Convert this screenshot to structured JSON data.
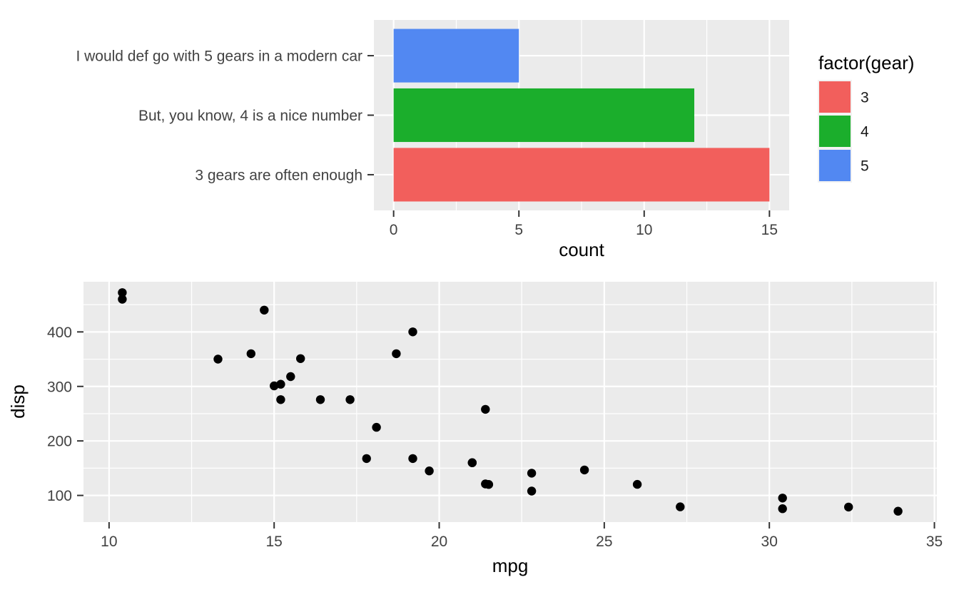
{
  "figure": {
    "background": "#ffffff",
    "panel_background": "#ebebeb",
    "grid_color": "#ffffff",
    "tick_mark_color": "#333333",
    "tick_label_color": "#424242",
    "axis_title_color": "#000000",
    "point_color": "#000000"
  },
  "chart_data": [
    {
      "type": "bar",
      "orientation": "horizontal",
      "xlabel": "count",
      "ylabel": "",
      "x_ticks": [
        0,
        5,
        10,
        15
      ],
      "x_minor_ticks": [
        2.5,
        7.5,
        12.5
      ],
      "xlim": [
        -0.7875,
        15.7875
      ],
      "grid": true,
      "bars": [
        {
          "label": "I would def go with 5 gears in a modern car",
          "gear": "5",
          "value": 5,
          "color": "#5288f2"
        },
        {
          "label": "But, you know, 4 is a nice number",
          "gear": "4",
          "value": 12,
          "color": "#1bae2c"
        },
        {
          "label": "3 gears are often enough",
          "gear": "3",
          "value": 15,
          "color": "#f25f5c"
        }
      ],
      "legend": {
        "title": "factor(gear)",
        "position": "right",
        "key_background": "#f2f2f2",
        "entries": [
          {
            "label": "3",
            "color": "#f25f5c"
          },
          {
            "label": "4",
            "color": "#1bae2c"
          },
          {
            "label": "5",
            "color": "#5288f2"
          }
        ]
      }
    },
    {
      "type": "scatter",
      "xlabel": "mpg",
      "ylabel": "disp",
      "x_ticks": [
        10,
        15,
        20,
        25,
        30,
        35
      ],
      "x_minor_ticks": [
        12.5,
        17.5,
        22.5,
        27.5,
        32.5
      ],
      "y_ticks": [
        100,
        200,
        300,
        400
      ],
      "y_minor_ticks": [
        150,
        250,
        350,
        450
      ],
      "xlim": [
        9.225,
        35.075
      ],
      "ylim": [
        51.055,
        492.045
      ],
      "grid": true,
      "legend": null,
      "points": [
        [
          21.0,
          160.0
        ],
        [
          21.0,
          160.0
        ],
        [
          22.8,
          108.0
        ],
        [
          21.4,
          258.0
        ],
        [
          18.7,
          360.0
        ],
        [
          18.1,
          225.0
        ],
        [
          14.3,
          360.0
        ],
        [
          24.4,
          146.7
        ],
        [
          22.8,
          140.8
        ],
        [
          19.2,
          167.6
        ],
        [
          17.8,
          167.6
        ],
        [
          16.4,
          275.8
        ],
        [
          17.3,
          275.8
        ],
        [
          15.2,
          275.8
        ],
        [
          10.4,
          472.0
        ],
        [
          10.4,
          460.0
        ],
        [
          14.7,
          440.0
        ],
        [
          32.4,
          78.7
        ],
        [
          30.4,
          75.7
        ],
        [
          33.9,
          71.1
        ],
        [
          21.5,
          120.1
        ],
        [
          15.5,
          318.0
        ],
        [
          15.2,
          304.0
        ],
        [
          13.3,
          350.0
        ],
        [
          19.2,
          400.0
        ],
        [
          27.3,
          79.0
        ],
        [
          26.0,
          120.3
        ],
        [
          30.4,
          95.1
        ],
        [
          15.8,
          351.0
        ],
        [
          19.7,
          145.0
        ],
        [
          15.0,
          301.0
        ],
        [
          21.4,
          121.0
        ]
      ]
    }
  ]
}
